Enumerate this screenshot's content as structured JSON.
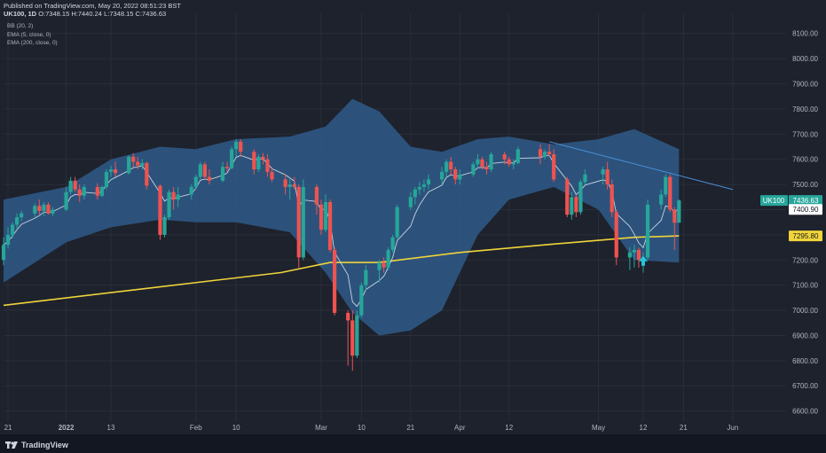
{
  "header": {
    "published": "Published on TradingView.com, May 20, 2022 08:51:23 BST",
    "symbol": "UK100, 1D",
    "o_label": "O:",
    "o_value": "7348.15",
    "h_label": "H:",
    "h_value": "7440.24",
    "l_label": "L:",
    "l_value": "7348.15",
    "c_label": "C:",
    "c_value": "7436.63",
    "indicators": [
      "BB (20, 2)",
      "EMA (5, close, 0)",
      "EMA (200, close, 0)"
    ]
  },
  "footer": {
    "brand": "TradingView",
    "logo_icon": "tradingview-logo-icon"
  },
  "colors": {
    "background": "#1e222d",
    "up": "#26a69a",
    "down": "#ef5350",
    "band_fill": "#2f5a8a",
    "ema5": "#c8d3df",
    "ema200": "#f0d43a",
    "trendline": "#4a90d9",
    "grid": "#2a2e39"
  },
  "chart_data": {
    "type": "candlestick",
    "title": "UK100, 1D",
    "ylim": [
      6560,
      8180
    ],
    "y_ticks": [
      6600,
      6700,
      6800,
      6900,
      7000,
      7100,
      7200,
      7300,
      7400,
      7500,
      7600,
      7700,
      7800,
      7900,
      8000,
      8100
    ],
    "y_tick_labels": [
      "6600.00",
      "6700.00",
      "6800.00",
      "6900.00",
      "7000.00",
      "7100.00",
      "7200.00",
      "7300.00",
      "7400.00",
      "7500.00",
      "7600.00",
      "7700.00",
      "7800.00",
      "7900.00",
      "8000.00",
      "8100.00"
    ],
    "x_tick_labels": [
      "21",
      "2022",
      "13",
      "Feb",
      "10",
      "Mar",
      "10",
      "21",
      "Apr",
      "12",
      "May",
      "12",
      "21",
      "Jun"
    ],
    "x_tick_dates": [
      "2021-12-21",
      "2022-01-03",
      "2022-01-13",
      "2022-02-01",
      "2022-02-10",
      "2022-03-01",
      "2022-03-10",
      "2022-03-21",
      "2022-04-01",
      "2022-04-12",
      "2022-05-02",
      "2022-05-12",
      "2022-05-21",
      "2022-06-01"
    ],
    "x_range": [
      "2021-12-20",
      "2022-06-05"
    ],
    "grid": true,
    "candles": [
      {
        "d": "2021-12-20",
        "o": 7200,
        "h": 7290,
        "l": 7180,
        "c": 7260
      },
      {
        "d": "2021-12-21",
        "o": 7260,
        "h": 7330,
        "l": 7245,
        "c": 7300
      },
      {
        "d": "2021-12-22",
        "o": 7300,
        "h": 7350,
        "l": 7285,
        "c": 7340
      },
      {
        "d": "2021-12-23",
        "o": 7340,
        "h": 7385,
        "l": 7325,
        "c": 7370
      },
      {
        "d": "2021-12-24",
        "o": 7370,
        "h": 7395,
        "l": 7355,
        "c": 7385
      },
      {
        "d": "2021-12-27",
        "o": 7385,
        "h": 7425,
        "l": 7370,
        "c": 7415
      },
      {
        "d": "2021-12-28",
        "o": 7415,
        "h": 7440,
        "l": 7380,
        "c": 7395
      },
      {
        "d": "2021-12-29",
        "o": 7395,
        "h": 7430,
        "l": 7375,
        "c": 7420
      },
      {
        "d": "2021-12-30",
        "o": 7420,
        "h": 7430,
        "l": 7380,
        "c": 7385
      },
      {
        "d": "2021-12-31",
        "o": 7385,
        "h": 7410,
        "l": 7375,
        "c": 7400
      },
      {
        "d": "2022-01-03",
        "o": 7400,
        "h": 7490,
        "l": 7395,
        "c": 7470
      },
      {
        "d": "2022-01-04",
        "o": 7470,
        "h": 7530,
        "l": 7460,
        "c": 7515
      },
      {
        "d": "2022-01-05",
        "o": 7515,
        "h": 7530,
        "l": 7470,
        "c": 7480
      },
      {
        "d": "2022-01-06",
        "o": 7480,
        "h": 7500,
        "l": 7430,
        "c": 7455
      },
      {
        "d": "2022-01-07",
        "o": 7455,
        "h": 7500,
        "l": 7440,
        "c": 7490
      },
      {
        "d": "2022-01-10",
        "o": 7490,
        "h": 7505,
        "l": 7440,
        "c": 7455
      },
      {
        "d": "2022-01-11",
        "o": 7455,
        "h": 7495,
        "l": 7450,
        "c": 7490
      },
      {
        "d": "2022-01-12",
        "o": 7490,
        "h": 7560,
        "l": 7480,
        "c": 7550
      },
      {
        "d": "2022-01-13",
        "o": 7550,
        "h": 7575,
        "l": 7530,
        "c": 7560
      },
      {
        "d": "2022-01-14",
        "o": 7560,
        "h": 7590,
        "l": 7530,
        "c": 7545
      },
      {
        "d": "2022-01-17",
        "o": 7545,
        "h": 7615,
        "l": 7540,
        "c": 7610
      },
      {
        "d": "2022-01-18",
        "o": 7610,
        "h": 7625,
        "l": 7570,
        "c": 7590
      },
      {
        "d": "2022-01-19",
        "o": 7590,
        "h": 7610,
        "l": 7560,
        "c": 7575
      },
      {
        "d": "2022-01-20",
        "o": 7575,
        "h": 7600,
        "l": 7560,
        "c": 7585
      },
      {
        "d": "2022-01-21",
        "o": 7585,
        "h": 7590,
        "l": 7480,
        "c": 7495
      },
      {
        "d": "2022-01-24",
        "o": 7495,
        "h": 7500,
        "l": 7280,
        "c": 7300
      },
      {
        "d": "2022-01-25",
        "o": 7300,
        "h": 7380,
        "l": 7290,
        "c": 7370
      },
      {
        "d": "2022-01-26",
        "o": 7370,
        "h": 7480,
        "l": 7360,
        "c": 7470
      },
      {
        "d": "2022-01-27",
        "o": 7470,
        "h": 7490,
        "l": 7400,
        "c": 7440
      },
      {
        "d": "2022-01-28",
        "o": 7440,
        "h": 7490,
        "l": 7410,
        "c": 7460
      },
      {
        "d": "2022-01-31",
        "o": 7460,
        "h": 7500,
        "l": 7440,
        "c": 7490
      },
      {
        "d": "2022-02-01",
        "o": 7490,
        "h": 7540,
        "l": 7480,
        "c": 7530
      },
      {
        "d": "2022-02-02",
        "o": 7530,
        "h": 7590,
        "l": 7520,
        "c": 7580
      },
      {
        "d": "2022-02-03",
        "o": 7580,
        "h": 7590,
        "l": 7520,
        "c": 7530
      },
      {
        "d": "2022-02-04",
        "o": 7530,
        "h": 7560,
        "l": 7500,
        "c": 7515
      },
      {
        "d": "2022-02-07",
        "o": 7515,
        "h": 7590,
        "l": 7510,
        "c": 7570
      },
      {
        "d": "2022-02-08",
        "o": 7570,
        "h": 7590,
        "l": 7550,
        "c": 7565
      },
      {
        "d": "2022-02-09",
        "o": 7565,
        "h": 7650,
        "l": 7560,
        "c": 7640
      },
      {
        "d": "2022-02-10",
        "o": 7640,
        "h": 7680,
        "l": 7610,
        "c": 7670
      },
      {
        "d": "2022-02-11",
        "o": 7670,
        "h": 7680,
        "l": 7610,
        "c": 7630
      },
      {
        "d": "2022-02-14",
        "o": 7630,
        "h": 7640,
        "l": 7540,
        "c": 7560
      },
      {
        "d": "2022-02-15",
        "o": 7560,
        "h": 7620,
        "l": 7550,
        "c": 7610
      },
      {
        "d": "2022-02-16",
        "o": 7610,
        "h": 7625,
        "l": 7580,
        "c": 7600
      },
      {
        "d": "2022-02-17",
        "o": 7600,
        "h": 7620,
        "l": 7530,
        "c": 7550
      },
      {
        "d": "2022-02-18",
        "o": 7550,
        "h": 7570,
        "l": 7510,
        "c": 7520
      },
      {
        "d": "2022-02-21",
        "o": 7520,
        "h": 7540,
        "l": 7460,
        "c": 7490
      },
      {
        "d": "2022-02-22",
        "o": 7490,
        "h": 7520,
        "l": 7440,
        "c": 7500
      },
      {
        "d": "2022-02-23",
        "o": 7500,
        "h": 7530,
        "l": 7480,
        "c": 7490
      },
      {
        "d": "2022-02-24",
        "o": 7490,
        "h": 7500,
        "l": 7170,
        "c": 7210
      },
      {
        "d": "2022-02-25",
        "o": 7210,
        "h": 7520,
        "l": 7200,
        "c": 7490
      },
      {
        "d": "2022-02-28",
        "o": 7490,
        "h": 7500,
        "l": 7380,
        "c": 7420
      },
      {
        "d": "2022-03-01",
        "o": 7420,
        "h": 7440,
        "l": 7300,
        "c": 7320
      },
      {
        "d": "2022-03-02",
        "o": 7320,
        "h": 7460,
        "l": 7310,
        "c": 7430
      },
      {
        "d": "2022-03-03",
        "o": 7430,
        "h": 7440,
        "l": 7230,
        "c": 7240
      },
      {
        "d": "2022-03-04",
        "o": 7240,
        "h": 7250,
        "l": 6980,
        "c": 6990
      },
      {
        "d": "2022-03-07",
        "o": 6990,
        "h": 7000,
        "l": 6780,
        "c": 6960
      },
      {
        "d": "2022-03-08",
        "o": 6960,
        "h": 7000,
        "l": 6760,
        "c": 6820
      },
      {
        "d": "2022-03-09",
        "o": 6820,
        "h": 7000,
        "l": 6810,
        "c": 6980
      },
      {
        "d": "2022-03-10",
        "o": 6980,
        "h": 7110,
        "l": 6970,
        "c": 7100
      },
      {
        "d": "2022-03-11",
        "o": 7100,
        "h": 7180,
        "l": 7080,
        "c": 7160
      },
      {
        "d": "2022-03-14",
        "o": 7160,
        "h": 7200,
        "l": 7110,
        "c": 7190
      },
      {
        "d": "2022-03-15",
        "o": 7190,
        "h": 7210,
        "l": 7150,
        "c": 7170
      },
      {
        "d": "2022-03-16",
        "o": 7170,
        "h": 7250,
        "l": 7160,
        "c": 7240
      },
      {
        "d": "2022-03-17",
        "o": 7240,
        "h": 7300,
        "l": 7230,
        "c": 7290
      },
      {
        "d": "2022-03-18",
        "o": 7290,
        "h": 7420,
        "l": 7280,
        "c": 7410
      },
      {
        "d": "2022-03-21",
        "o": 7410,
        "h": 7470,
        "l": 7400,
        "c": 7450
      },
      {
        "d": "2022-03-22",
        "o": 7450,
        "h": 7490,
        "l": 7420,
        "c": 7480
      },
      {
        "d": "2022-03-23",
        "o": 7480,
        "h": 7510,
        "l": 7460,
        "c": 7490
      },
      {
        "d": "2022-03-24",
        "o": 7490,
        "h": 7520,
        "l": 7470,
        "c": 7500
      },
      {
        "d": "2022-03-25",
        "o": 7500,
        "h": 7540,
        "l": 7480,
        "c": 7520
      },
      {
        "d": "2022-03-28",
        "o": 7520,
        "h": 7570,
        "l": 7500,
        "c": 7550
      },
      {
        "d": "2022-03-29",
        "o": 7550,
        "h": 7600,
        "l": 7530,
        "c": 7590
      },
      {
        "d": "2022-03-30",
        "o": 7590,
        "h": 7610,
        "l": 7540,
        "c": 7560
      },
      {
        "d": "2022-03-31",
        "o": 7560,
        "h": 7570,
        "l": 7500,
        "c": 7520
      },
      {
        "d": "2022-04-01",
        "o": 7520,
        "h": 7560,
        "l": 7500,
        "c": 7540
      },
      {
        "d": "2022-04-04",
        "o": 7540,
        "h": 7590,
        "l": 7530,
        "c": 7580
      },
      {
        "d": "2022-04-05",
        "o": 7580,
        "h": 7620,
        "l": 7570,
        "c": 7600
      },
      {
        "d": "2022-04-06",
        "o": 7600,
        "h": 7610,
        "l": 7560,
        "c": 7570
      },
      {
        "d": "2022-04-07",
        "o": 7570,
        "h": 7590,
        "l": 7540,
        "c": 7560
      },
      {
        "d": "2022-04-08",
        "o": 7560,
        "h": 7630,
        "l": 7550,
        "c": 7620
      },
      {
        "d": "2022-04-11",
        "o": 7620,
        "h": 7630,
        "l": 7580,
        "c": 7600
      },
      {
        "d": "2022-04-12",
        "o": 7600,
        "h": 7610,
        "l": 7570,
        "c": 7580
      },
      {
        "d": "2022-04-13",
        "o": 7580,
        "h": 7600,
        "l": 7560,
        "c": 7585
      },
      {
        "d": "2022-04-14",
        "o": 7585,
        "h": 7650,
        "l": 7580,
        "c": 7640
      },
      {
        "d": "2022-04-19",
        "o": 7640,
        "h": 7660,
        "l": 7580,
        "c": 7610
      },
      {
        "d": "2022-04-20",
        "o": 7610,
        "h": 7640,
        "l": 7600,
        "c": 7630
      },
      {
        "d": "2022-04-21",
        "o": 7630,
        "h": 7660,
        "l": 7610,
        "c": 7620
      },
      {
        "d": "2022-04-22",
        "o": 7620,
        "h": 7640,
        "l": 7510,
        "c": 7520
      },
      {
        "d": "2022-04-25",
        "o": 7520,
        "h": 7530,
        "l": 7370,
        "c": 7380
      },
      {
        "d": "2022-04-26",
        "o": 7380,
        "h": 7470,
        "l": 7360,
        "c": 7450
      },
      {
        "d": "2022-04-27",
        "o": 7450,
        "h": 7460,
        "l": 7370,
        "c": 7390
      },
      {
        "d": "2022-04-28",
        "o": 7390,
        "h": 7520,
        "l": 7380,
        "c": 7510
      },
      {
        "d": "2022-04-29",
        "o": 7510,
        "h": 7560,
        "l": 7500,
        "c": 7540
      },
      {
        "d": "2022-05-03",
        "o": 7540,
        "h": 7570,
        "l": 7500,
        "c": 7560
      },
      {
        "d": "2022-05-04",
        "o": 7560,
        "h": 7590,
        "l": 7480,
        "c": 7500
      },
      {
        "d": "2022-05-05",
        "o": 7500,
        "h": 7520,
        "l": 7370,
        "c": 7390
      },
      {
        "d": "2022-05-06",
        "o": 7390,
        "h": 7400,
        "l": 7180,
        "c": 7210
      },
      {
        "d": "2022-05-09",
        "o": 7210,
        "h": 7250,
        "l": 7160,
        "c": 7230
      },
      {
        "d": "2022-05-10",
        "o": 7230,
        "h": 7260,
        "l": 7170,
        "c": 7240
      },
      {
        "d": "2022-05-11",
        "o": 7240,
        "h": 7250,
        "l": 7170,
        "c": 7200
      },
      {
        "d": "2022-05-12",
        "o": 7200,
        "h": 7230,
        "l": 7150,
        "c": 7210
      },
      {
        "d": "2022-05-13",
        "o": 7210,
        "h": 7440,
        "l": 7200,
        "c": 7420
      },
      {
        "d": "2022-05-16",
        "o": 7420,
        "h": 7480,
        "l": 7400,
        "c": 7460
      },
      {
        "d": "2022-05-17",
        "o": 7460,
        "h": 7540,
        "l": 7450,
        "c": 7530
      },
      {
        "d": "2022-05-18",
        "o": 7530,
        "h": 7540,
        "l": 7390,
        "c": 7400
      },
      {
        "d": "2022-05-19",
        "o": 7400,
        "h": 7410,
        "l": 7240,
        "c": 7348.15
      },
      {
        "d": "2022-05-20",
        "o": 7348.15,
        "h": 7440.24,
        "l": 7348.15,
        "c": 7436.63
      }
    ],
    "ema200": [
      {
        "d": "2021-12-20",
        "v": 7020
      },
      {
        "d": "2022-01-20",
        "v": 7085
      },
      {
        "d": "2022-02-20",
        "v": 7150
      },
      {
        "d": "2022-03-03",
        "v": 7190
      },
      {
        "d": "2022-03-14",
        "v": 7190
      },
      {
        "d": "2022-04-01",
        "v": 7230
      },
      {
        "d": "2022-04-20",
        "v": 7260
      },
      {
        "d": "2022-05-10",
        "v": 7290
      },
      {
        "d": "2022-05-20",
        "v": 7295.8
      }
    ],
    "bb_upper": [
      {
        "d": "2021-12-20",
        "v": 7440
      },
      {
        "d": "2022-01-03",
        "v": 7490
      },
      {
        "d": "2022-01-13",
        "v": 7600
      },
      {
        "d": "2022-01-24",
        "v": 7650
      },
      {
        "d": "2022-02-01",
        "v": 7640
      },
      {
        "d": "2022-02-10",
        "v": 7680
      },
      {
        "d": "2022-02-22",
        "v": 7690
      },
      {
        "d": "2022-03-02",
        "v": 7730
      },
      {
        "d": "2022-03-08",
        "v": 7840
      },
      {
        "d": "2022-03-14",
        "v": 7790
      },
      {
        "d": "2022-03-21",
        "v": 7650
      },
      {
        "d": "2022-03-28",
        "v": 7630
      },
      {
        "d": "2022-04-05",
        "v": 7680
      },
      {
        "d": "2022-04-12",
        "v": 7690
      },
      {
        "d": "2022-04-22",
        "v": 7660
      },
      {
        "d": "2022-05-02",
        "v": 7680
      },
      {
        "d": "2022-05-10",
        "v": 7720
      },
      {
        "d": "2022-05-20",
        "v": 7640
      }
    ],
    "bb_lower": [
      {
        "d": "2021-12-20",
        "v": 7110
      },
      {
        "d": "2022-01-03",
        "v": 7270
      },
      {
        "d": "2022-01-13",
        "v": 7330
      },
      {
        "d": "2022-01-24",
        "v": 7360
      },
      {
        "d": "2022-02-01",
        "v": 7350
      },
      {
        "d": "2022-02-10",
        "v": 7350
      },
      {
        "d": "2022-02-22",
        "v": 7310
      },
      {
        "d": "2022-03-02",
        "v": 7150
      },
      {
        "d": "2022-03-08",
        "v": 6990
      },
      {
        "d": "2022-03-14",
        "v": 6900
      },
      {
        "d": "2022-03-21",
        "v": 6920
      },
      {
        "d": "2022-03-28",
        "v": 7000
      },
      {
        "d": "2022-04-05",
        "v": 7300
      },
      {
        "d": "2022-04-12",
        "v": 7440
      },
      {
        "d": "2022-04-22",
        "v": 7490
      },
      {
        "d": "2022-05-02",
        "v": 7400
      },
      {
        "d": "2022-05-10",
        "v": 7200
      },
      {
        "d": "2022-05-20",
        "v": 7190
      }
    ],
    "trendline": [
      {
        "d": "2022-04-21",
        "v": 7670
      },
      {
        "d": "2022-06-01",
        "v": 7480
      }
    ],
    "price_labels": [
      {
        "name": "symbol-price",
        "text": "UK100",
        "value": 7436.63,
        "value_text": "7436.63",
        "color": "#26a69a"
      },
      {
        "name": "ema5-price",
        "text": "",
        "value": 7400.9,
        "value_text": "7400.90",
        "color": "#ffffff"
      },
      {
        "name": "ema200-price",
        "text": "",
        "value": 7295.8,
        "value_text": "7295.80",
        "color": "#f0d43a"
      }
    ],
    "marker": {
      "type": "arrow-up",
      "d": "2022-05-12",
      "v": 7195
    }
  }
}
